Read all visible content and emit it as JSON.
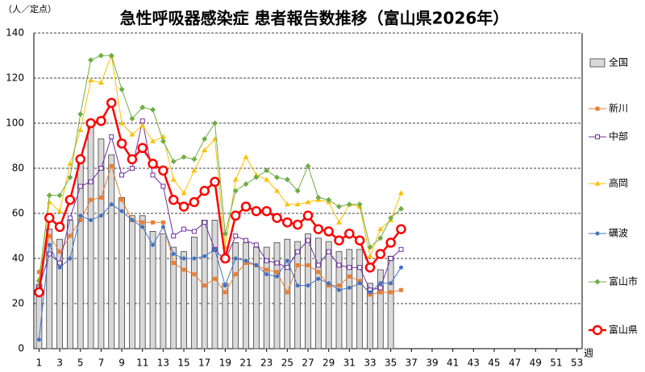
{
  "chart_data": {
    "type": "bar-line",
    "title": "急性呼吸器感染症 患者報告数推移（富山県2026年）",
    "y_label": "（人／定点）",
    "x_label": "週",
    "x": [
      1,
      2,
      3,
      4,
      5,
      6,
      7,
      8,
      9,
      10,
      11,
      12,
      13,
      14,
      15,
      16,
      17,
      18,
      19,
      20,
      21,
      22,
      23,
      24,
      25,
      26,
      27,
      28,
      29,
      30,
      31,
      32,
      33,
      34,
      35,
      36
    ],
    "xlim": [
      0.5,
      53.5
    ],
    "xticks": [
      1,
      3,
      5,
      7,
      9,
      11,
      13,
      15,
      17,
      19,
      21,
      23,
      25,
      27,
      29,
      31,
      33,
      35,
      37,
      39,
      41,
      43,
      45,
      47,
      49,
      51,
      53
    ],
    "ylim": [
      0,
      140
    ],
    "yticks": [
      0,
      20,
      40,
      60,
      80,
      100,
      120,
      140
    ],
    "grid": true,
    "legend": "right",
    "series": [
      {
        "name": "全国",
        "type": "bar",
        "color": "#d9d9d9",
        "values": [
          28.6,
          53,
          48.5,
          57,
          84,
          101,
          93,
          86,
          67,
          59,
          59,
          52,
          51,
          45,
          43,
          49.5,
          57,
          57,
          29,
          47,
          47,
          45,
          45,
          47,
          48.5,
          47.5,
          51,
          49,
          47.5,
          43,
          44,
          44,
          29,
          35,
          41,
          null
        ]
      },
      {
        "name": "新川",
        "type": "line",
        "marker": "square",
        "color": "#ed7d31",
        "values": [
          34,
          50,
          43,
          50,
          57,
          66,
          67,
          81,
          66,
          57,
          56,
          56,
          56,
          38,
          35,
          33,
          28,
          31,
          25,
          33,
          38,
          37,
          35,
          34,
          25,
          37,
          37,
          34,
          28,
          28,
          32,
          30,
          24,
          25,
          25,
          26
        ]
      },
      {
        "name": "中部",
        "type": "line",
        "marker": "open-square",
        "color": "#7030a0",
        "values": [
          27,
          42,
          38,
          58,
          72,
          74,
          80,
          94,
          77,
          80,
          101,
          77,
          72,
          50,
          53,
          52,
          56,
          44,
          39,
          50,
          48,
          46,
          39,
          38,
          36,
          43,
          48,
          37,
          43,
          37,
          36,
          36,
          26,
          27,
          40,
          44
        ]
      },
      {
        "name": "高岡",
        "type": "line",
        "marker": "triangle",
        "color": "#ffc000",
        "values": [
          31,
          65,
          61,
          82,
          97,
          119,
          118,
          130,
          100,
          95,
          99,
          92,
          94,
          75,
          69,
          79,
          88,
          93,
          45,
          75,
          85,
          77,
          75,
          70,
          64,
          64,
          65,
          66,
          65,
          56,
          64,
          63,
          41,
          53,
          57,
          69
        ]
      },
      {
        "name": "礪波",
        "type": "line",
        "marker": "circle",
        "color": "#4472c4",
        "values": [
          4,
          46,
          36,
          40,
          59,
          57,
          59,
          64,
          61,
          57,
          54,
          46,
          54,
          42,
          40,
          40,
          41,
          44,
          28,
          40,
          39,
          37,
          33,
          32,
          39,
          28,
          28,
          31,
          29,
          26,
          27,
          29,
          25,
          29,
          29,
          36
        ]
      },
      {
        "name": "富山市",
        "type": "line",
        "marker": "diamond",
        "color": "#70ad47",
        "values": [
          30,
          68,
          68,
          76,
          104,
          128,
          130,
          130,
          115,
          102,
          107,
          106,
          92,
          83,
          85,
          84,
          93,
          100,
          51,
          70,
          73,
          76,
          79,
          76,
          75,
          70,
          81,
          67,
          66,
          63,
          64,
          64,
          45,
          49,
          58,
          62
        ]
      },
      {
        "name": "富山県",
        "type": "line",
        "marker": "open-circle",
        "color": "#ff0000",
        "values": [
          25,
          58,
          54,
          66,
          84,
          100,
          101,
          109,
          91,
          84,
          89,
          82,
          79,
          66,
          63,
          65,
          70,
          74,
          40,
          59,
          63,
          61,
          61,
          58,
          56,
          55,
          59,
          53,
          52,
          48,
          51,
          48,
          36,
          42,
          47,
          53
        ]
      }
    ]
  }
}
